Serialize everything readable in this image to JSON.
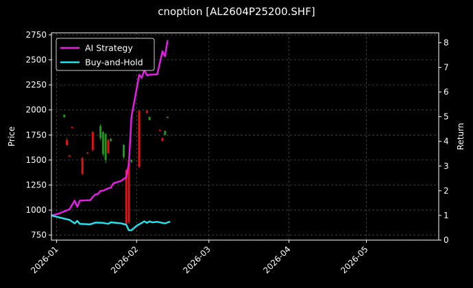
{
  "chart_data": {
    "type": "line",
    "title": "cnoption [AL2604P25200.SHF]",
    "xlabel": "",
    "ylabel_left": "Price",
    "ylabel_right": "Return",
    "x_range": [
      "2025-12-30",
      "2026-05-29"
    ],
    "ylim_left": [
      700,
      2770
    ],
    "ylim_right": [
      0,
      8.4
    ],
    "x_ticks": [
      "2026-01",
      "2026-02",
      "2026-03",
      "2026-04",
      "2026-05"
    ],
    "x_tick_dates": [
      "2026-01-01",
      "2026-02-01",
      "2026-03-01",
      "2026-04-01",
      "2026-05-01"
    ],
    "y_ticks_left": [
      750,
      1000,
      1250,
      1500,
      1750,
      2000,
      2250,
      2500,
      2750
    ],
    "y_ticks_right": [
      0,
      1,
      2,
      3,
      4,
      5,
      6,
      7,
      8
    ],
    "grid": true,
    "legend_position": "top-left",
    "series": [
      {
        "name": "AI Strategy",
        "color": "#e81ee8",
        "axis": "right",
        "points": [
          [
            "2025-12-30",
            1.0
          ],
          [
            "2026-01-02",
            1.08
          ],
          [
            "2026-01-06",
            1.25
          ],
          [
            "2026-01-08",
            1.6
          ],
          [
            "2026-01-09",
            1.35
          ],
          [
            "2026-01-10",
            1.6
          ],
          [
            "2026-01-14",
            1.62
          ],
          [
            "2026-01-15",
            1.75
          ],
          [
            "2026-01-16",
            1.85
          ],
          [
            "2026-01-17",
            1.87
          ],
          [
            "2026-01-18",
            2.0
          ],
          [
            "2026-01-19",
            2.0
          ],
          [
            "2026-01-21",
            2.1
          ],
          [
            "2026-01-22",
            2.12
          ],
          [
            "2026-01-23",
            2.3
          ],
          [
            "2026-01-26",
            2.4
          ],
          [
            "2026-01-28",
            2.55
          ],
          [
            "2026-01-29",
            3.1
          ],
          [
            "2026-01-30",
            5.0
          ],
          [
            "2026-02-02",
            6.7
          ],
          [
            "2026-02-03",
            6.58
          ],
          [
            "2026-02-04",
            6.9
          ],
          [
            "2026-02-05",
            6.68
          ],
          [
            "2026-02-06",
            6.7
          ],
          [
            "2026-02-09",
            6.72
          ],
          [
            "2026-02-11",
            7.65
          ],
          [
            "2026-02-12",
            7.45
          ],
          [
            "2026-02-13",
            8.1
          ]
        ]
      },
      {
        "name": "Buy-and-Hold",
        "color": "#23e3ee",
        "axis": "right",
        "points": [
          [
            "2025-12-30",
            1.0
          ],
          [
            "2026-01-02",
            0.92
          ],
          [
            "2026-01-06",
            0.82
          ],
          [
            "2026-01-08",
            0.68
          ],
          [
            "2026-01-09",
            0.78
          ],
          [
            "2026-01-10",
            0.66
          ],
          [
            "2026-01-14",
            0.64
          ],
          [
            "2026-01-16",
            0.71
          ],
          [
            "2026-01-19",
            0.7
          ],
          [
            "2026-01-21",
            0.66
          ],
          [
            "2026-01-22",
            0.72
          ],
          [
            "2026-01-26",
            0.68
          ],
          [
            "2026-01-28",
            0.62
          ],
          [
            "2026-01-29",
            0.4
          ],
          [
            "2026-01-30",
            0.4
          ],
          [
            "2026-02-01",
            0.58
          ],
          [
            "2026-02-04",
            0.76
          ],
          [
            "2026-02-05",
            0.7
          ],
          [
            "2026-02-06",
            0.76
          ],
          [
            "2026-02-07",
            0.72
          ],
          [
            "2026-02-09",
            0.74
          ],
          [
            "2026-02-11",
            0.7
          ],
          [
            "2026-02-12",
            0.68
          ],
          [
            "2026-02-14",
            0.75
          ]
        ]
      }
    ],
    "candles": [
      {
        "date": "2026-01-04",
        "open": 1930,
        "close": 1950,
        "high": 1960,
        "low": 1920
      },
      {
        "date": "2026-01-05",
        "open": 1700,
        "close": 1650,
        "high": 1720,
        "low": 1640
      },
      {
        "date": "2026-01-06",
        "open": 1545,
        "close": 1535,
        "high": 1550,
        "low": 1530
      },
      {
        "date": "2026-01-07",
        "open": 1830,
        "close": 1820,
        "high": 1835,
        "low": 1815
      },
      {
        "date": "2026-01-11",
        "open": 1520,
        "close": 1360,
        "high": 1530,
        "low": 1350
      },
      {
        "date": "2026-01-13",
        "open": 1575,
        "close": 1565,
        "high": 1580,
        "low": 1560
      },
      {
        "date": "2026-01-15",
        "open": 1780,
        "close": 1600,
        "high": 1790,
        "low": 1590
      },
      {
        "date": "2026-01-18",
        "open": 1720,
        "close": 1840,
        "high": 1860,
        "low": 1700
      },
      {
        "date": "2026-01-19",
        "open": 1560,
        "close": 1780,
        "high": 1790,
        "low": 1540
      },
      {
        "date": "2026-01-20",
        "open": 1500,
        "close": 1760,
        "high": 1770,
        "low": 1470
      },
      {
        "date": "2026-01-21",
        "open": 1700,
        "close": 1570,
        "high": 1710,
        "low": 1560
      },
      {
        "date": "2026-01-22",
        "open": 1690,
        "close": 1710,
        "high": 1720,
        "low": 1680
      },
      {
        "date": "2026-01-27",
        "open": 1530,
        "close": 1650,
        "high": 1660,
        "low": 1510
      },
      {
        "date": "2026-01-28",
        "open": 1400,
        "close": 860,
        "high": 1410,
        "low": 850
      },
      {
        "date": "2026-01-29",
        "open": 1500,
        "close": 880,
        "high": 1520,
        "low": 860
      },
      {
        "date": "2026-01-30",
        "open": 1480,
        "close": 1500,
        "high": 1510,
        "low": 1470
      },
      {
        "date": "2026-02-02",
        "open": 1990,
        "close": 1430,
        "high": 2000,
        "low": 1420
      },
      {
        "date": "2026-02-05",
        "open": 1990,
        "close": 1970,
        "high": 2000,
        "low": 1965
      },
      {
        "date": "2026-02-06",
        "open": 1900,
        "close": 1930,
        "high": 1935,
        "low": 1895
      },
      {
        "date": "2026-02-10",
        "open": 1800,
        "close": 1790,
        "high": 1805,
        "low": 1785
      },
      {
        "date": "2026-02-11",
        "open": 1720,
        "close": 1690,
        "high": 1725,
        "low": 1685
      },
      {
        "date": "2026-02-12",
        "open": 1750,
        "close": 1790,
        "high": 1795,
        "low": 1745
      },
      {
        "date": "2026-02-13",
        "open": 1925,
        "close": 1930,
        "high": 1935,
        "low": 1920
      }
    ],
    "candle_colors": {
      "up": "#1a9a1a",
      "down": "#e01414"
    }
  }
}
